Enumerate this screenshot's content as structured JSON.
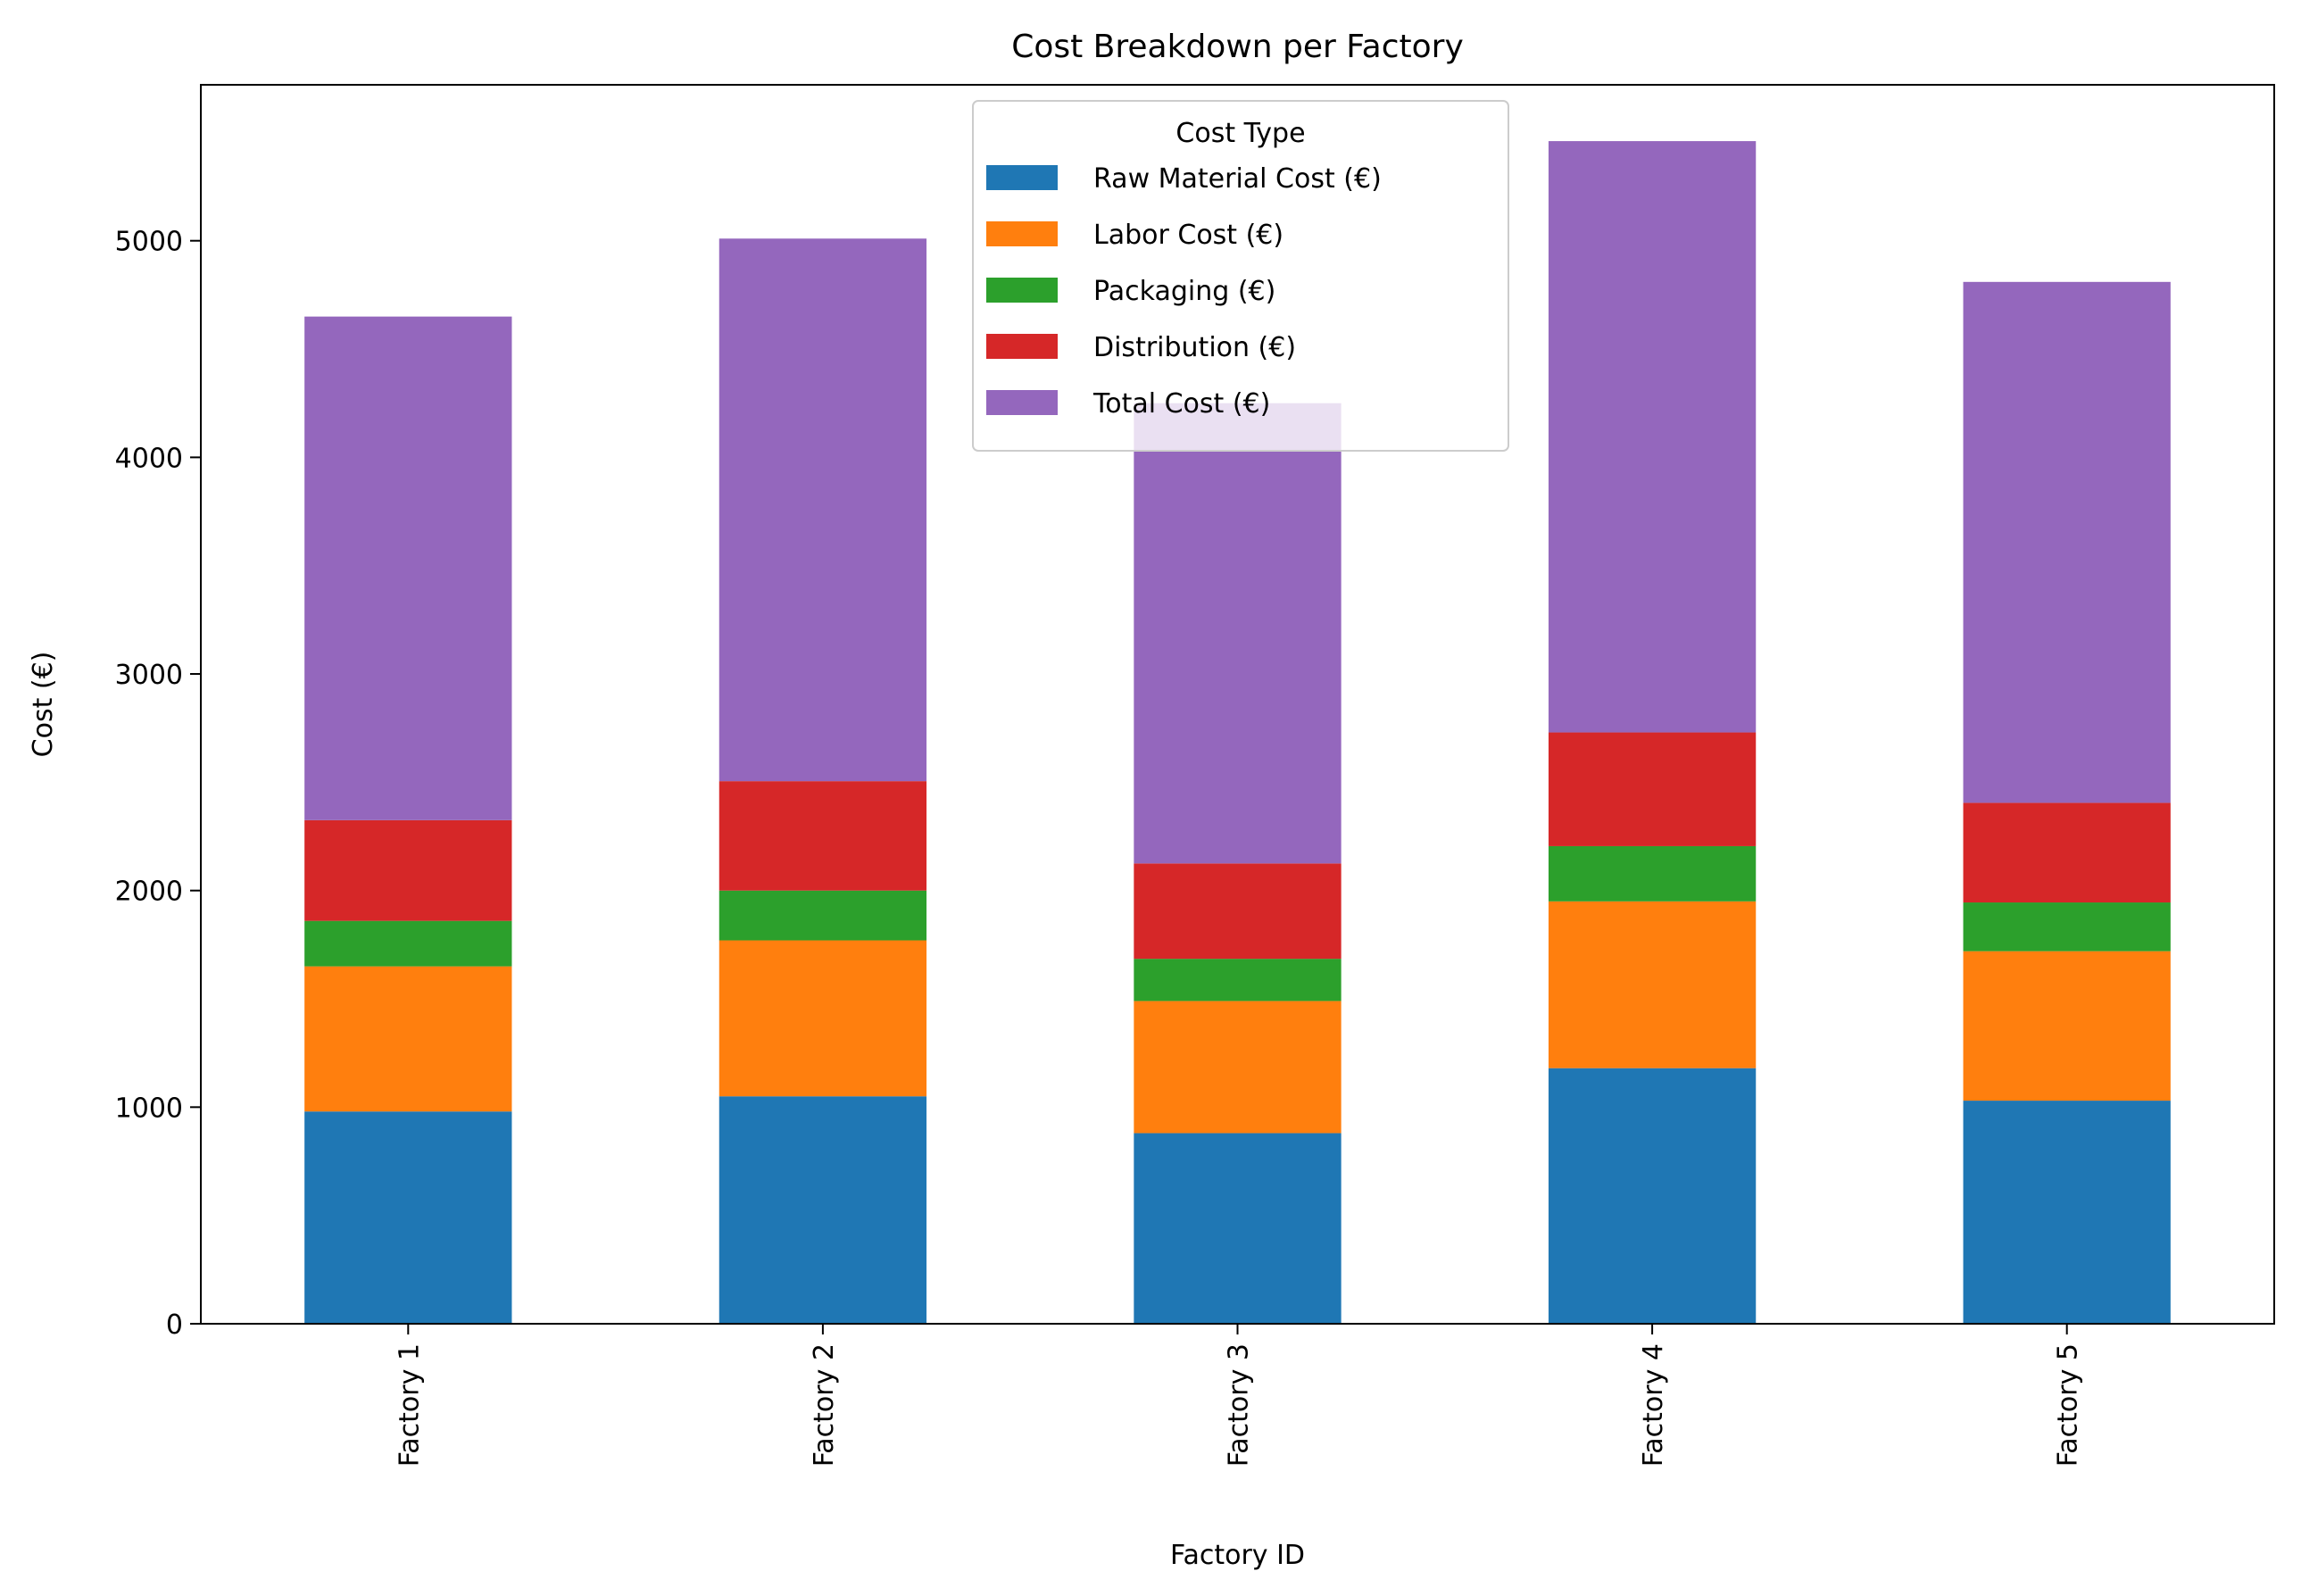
{
  "chart_data": {
    "type": "bar",
    "stacked": true,
    "title": "Cost Breakdown per Factory",
    "xlabel": "Factory ID",
    "ylabel": "Cost (€)",
    "ylim": [
      0,
      5720
    ],
    "yticks": [
      0,
      1000,
      2000,
      3000,
      4000,
      5000
    ],
    "categories": [
      "Factory 1",
      "Factory 2",
      "Factory 3",
      "Factory 4",
      "Factory 5"
    ],
    "legend": {
      "title": "Cost Type",
      "position": "upper center"
    },
    "grid": false,
    "series": [
      {
        "name": "Raw Material Cost (€)",
        "color": "#1f77b4",
        "values": [
          980,
          1050,
          880,
          1180,
          1030
        ]
      },
      {
        "name": "Labor Cost (€)",
        "color": "#ff7f0e",
        "values": [
          670,
          720,
          610,
          770,
          690
        ]
      },
      {
        "name": "Packaging (€)",
        "color": "#2ca02c",
        "values": [
          210,
          230,
          195,
          255,
          225
        ]
      },
      {
        "name": "Distribution (€)",
        "color": "#d62728",
        "values": [
          465,
          505,
          440,
          525,
          460
        ]
      },
      {
        "name": "Total Cost (€)",
        "color": "#9467bd",
        "values": [
          2325,
          2505,
          2125,
          2730,
          2405
        ]
      }
    ]
  }
}
